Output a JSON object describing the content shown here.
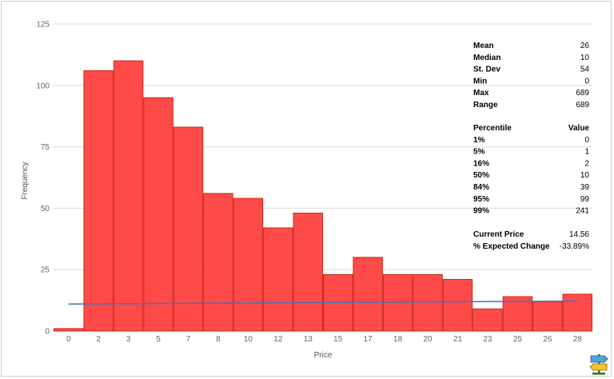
{
  "chart_data": {
    "type": "bar",
    "title": "",
    "xlabel": "Price",
    "ylabel": "Frequency",
    "ylim": [
      0,
      125
    ],
    "yticks": [
      0,
      25,
      50,
      75,
      100,
      125
    ],
    "grid": true,
    "categories": [
      "0",
      "2",
      "3",
      "5",
      "7",
      "8",
      "10",
      "12",
      "13",
      "15",
      "17",
      "18",
      "20",
      "21",
      "23",
      "25",
      "26",
      "28"
    ],
    "series": [
      {
        "values": [
          1,
          106,
          110,
          95,
          83,
          56,
          54,
          42,
          48,
          23,
          30,
          23,
          23,
          21,
          9,
          14,
          12,
          15
        ],
        "color": "#ff4a4a",
        "stroke": "#cc2a12"
      }
    ],
    "trend_line": {
      "start": 11,
      "end": 12.2,
      "color": "#4a6fb5"
    }
  },
  "stats": {
    "summary": [
      {
        "label": "Mean",
        "value": "26"
      },
      {
        "label": "Median",
        "value": "10"
      },
      {
        "label": "St. Dev",
        "value": "54"
      },
      {
        "label": "Min",
        "value": "0"
      },
      {
        "label": "Max",
        "value": "689"
      },
      {
        "label": "Range",
        "value": "689"
      }
    ],
    "percentile_header": {
      "label": "Percentile",
      "value": "Value"
    },
    "percentiles": [
      {
        "label": "1%",
        "value": "0"
      },
      {
        "label": "5%",
        "value": "1"
      },
      {
        "label": "16%",
        "value": "2"
      },
      {
        "label": "50%",
        "value": "10"
      },
      {
        "label": "84%",
        "value": "39"
      },
      {
        "label": "95%",
        "value": "99"
      },
      {
        "label": "99%",
        "value": "241"
      }
    ],
    "price": [
      {
        "label": "Current Price",
        "value": "14.56"
      },
      {
        "label": "% Expected Change",
        "value": "-33.89%"
      }
    ]
  }
}
